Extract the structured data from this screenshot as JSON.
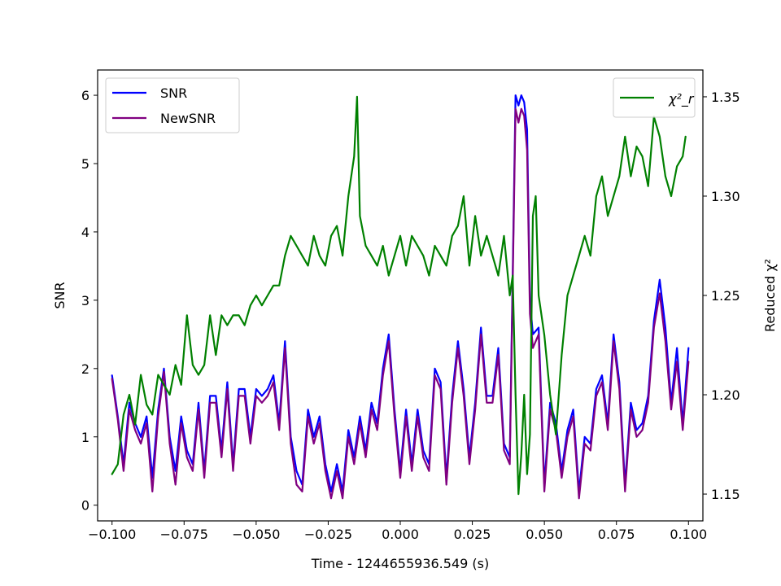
{
  "chart_data": {
    "type": "line",
    "xlabel": "Time - 1244655936.549 (s)",
    "ylabel_left": "SNR",
    "ylabel_right": "Reduced χ²",
    "xlim": [
      -0.105,
      0.105
    ],
    "ylim_left": [
      -0.23,
      6.37
    ],
    "ylim_right": [
      1.1365,
      1.3635
    ],
    "x_ticks": [
      -0.1,
      -0.075,
      -0.05,
      -0.025,
      0.0,
      0.025,
      0.05,
      0.075,
      0.1
    ],
    "x_tick_labels": [
      "−0.100",
      "−0.075",
      "−0.050",
      "−0.025",
      "0.000",
      "0.025",
      "0.050",
      "0.075",
      "0.100"
    ],
    "y_left_ticks": [
      0,
      1,
      2,
      3,
      4,
      5,
      6
    ],
    "y_left_tick_labels": [
      "0",
      "1",
      "2",
      "3",
      "4",
      "5",
      "6"
    ],
    "y_right_ticks": [
      1.15,
      1.2,
      1.25,
      1.3,
      1.35
    ],
    "y_right_tick_labels": [
      "1.15",
      "1.20",
      "1.25",
      "1.30",
      "1.35"
    ],
    "grid": false,
    "legend_left": {
      "placement": "upper-left",
      "entries": [
        "SNR",
        "NewSNR"
      ]
    },
    "legend_right": {
      "placement": "upper-right",
      "entries": [
        "χ²_r"
      ]
    },
    "series": [
      {
        "name": "SNR",
        "axis": "left",
        "color": "#0000ff",
        "x": [
          -0.1,
          -0.098,
          -0.096,
          -0.094,
          -0.092,
          -0.09,
          -0.088,
          -0.086,
          -0.084,
          -0.082,
          -0.08,
          -0.078,
          -0.076,
          -0.074,
          -0.072,
          -0.07,
          -0.068,
          -0.066,
          -0.064,
          -0.062,
          -0.06,
          -0.058,
          -0.056,
          -0.054,
          -0.052,
          -0.05,
          -0.048,
          -0.046,
          -0.044,
          -0.042,
          -0.04,
          -0.038,
          -0.036,
          -0.034,
          -0.032,
          -0.03,
          -0.028,
          -0.026,
          -0.024,
          -0.022,
          -0.02,
          -0.018,
          -0.016,
          -0.014,
          -0.012,
          -0.01,
          -0.008,
          -0.006,
          -0.004,
          -0.002,
          0.0,
          0.002,
          0.004,
          0.006,
          0.008,
          0.01,
          0.012,
          0.014,
          0.016,
          0.018,
          0.02,
          0.022,
          0.024,
          0.026,
          0.028,
          0.03,
          0.032,
          0.034,
          0.036,
          0.038,
          0.04,
          0.041,
          0.042,
          0.043,
          0.044,
          0.045,
          0.046,
          0.048,
          0.05,
          0.052,
          0.054,
          0.056,
          0.058,
          0.06,
          0.062,
          0.064,
          0.066,
          0.068,
          0.07,
          0.072,
          0.074,
          0.076,
          0.078,
          0.08,
          0.082,
          0.084,
          0.086,
          0.088,
          0.09,
          0.092,
          0.094,
          0.096,
          0.098,
          0.1
        ],
        "values": [
          1.9,
          1.3,
          0.6,
          1.5,
          1.2,
          1.0,
          1.3,
          0.4,
          1.4,
          2.0,
          1.0,
          0.5,
          1.3,
          0.8,
          0.6,
          1.5,
          0.5,
          1.6,
          1.6,
          0.8,
          1.8,
          0.6,
          1.7,
          1.7,
          1.0,
          1.7,
          1.6,
          1.7,
          1.9,
          1.2,
          2.4,
          1.0,
          0.5,
          0.3,
          1.4,
          1.0,
          1.3,
          0.6,
          0.2,
          0.6,
          0.2,
          1.1,
          0.7,
          1.3,
          0.8,
          1.5,
          1.2,
          2.0,
          2.5,
          1.4,
          0.5,
          1.4,
          0.6,
          1.4,
          0.8,
          0.6,
          2.0,
          1.8,
          0.4,
          1.6,
          2.4,
          1.7,
          0.7,
          1.5,
          2.6,
          1.6,
          1.6,
          2.3,
          0.9,
          0.7,
          6.0,
          5.85,
          6.0,
          5.9,
          5.5,
          3.0,
          2.5,
          2.6,
          0.3,
          1.5,
          1.2,
          0.5,
          1.1,
          1.4,
          0.2,
          1.0,
          0.9,
          1.7,
          1.9,
          1.2,
          2.5,
          1.8,
          0.3,
          1.5,
          1.1,
          1.2,
          1.6,
          2.7,
          3.3,
          2.6,
          1.5,
          2.3,
          1.2,
          2.3
        ]
      },
      {
        "name": "NewSNR",
        "axis": "left",
        "color": "#800080",
        "x": [
          -0.1,
          -0.098,
          -0.096,
          -0.094,
          -0.092,
          -0.09,
          -0.088,
          -0.086,
          -0.084,
          -0.082,
          -0.08,
          -0.078,
          -0.076,
          -0.074,
          -0.072,
          -0.07,
          -0.068,
          -0.066,
          -0.064,
          -0.062,
          -0.06,
          -0.058,
          -0.056,
          -0.054,
          -0.052,
          -0.05,
          -0.048,
          -0.046,
          -0.044,
          -0.042,
          -0.04,
          -0.038,
          -0.036,
          -0.034,
          -0.032,
          -0.03,
          -0.028,
          -0.026,
          -0.024,
          -0.022,
          -0.02,
          -0.018,
          -0.016,
          -0.014,
          -0.012,
          -0.01,
          -0.008,
          -0.006,
          -0.004,
          -0.002,
          0.0,
          0.002,
          0.004,
          0.006,
          0.008,
          0.01,
          0.012,
          0.014,
          0.016,
          0.018,
          0.02,
          0.022,
          0.024,
          0.026,
          0.028,
          0.03,
          0.032,
          0.034,
          0.036,
          0.038,
          0.04,
          0.041,
          0.042,
          0.043,
          0.044,
          0.045,
          0.046,
          0.048,
          0.05,
          0.052,
          0.054,
          0.056,
          0.058,
          0.06,
          0.062,
          0.064,
          0.066,
          0.068,
          0.07,
          0.072,
          0.074,
          0.076,
          0.078,
          0.08,
          0.082,
          0.084,
          0.086,
          0.088,
          0.09,
          0.092,
          0.094,
          0.096,
          0.098,
          0.1
        ],
        "values": [
          1.85,
          1.25,
          0.5,
          1.4,
          1.1,
          0.9,
          1.2,
          0.2,
          1.3,
          1.95,
          0.9,
          0.3,
          1.2,
          0.7,
          0.5,
          1.4,
          0.4,
          1.5,
          1.5,
          0.7,
          1.7,
          0.5,
          1.6,
          1.6,
          0.9,
          1.6,
          1.5,
          1.6,
          1.8,
          1.1,
          2.3,
          0.9,
          0.3,
          0.2,
          1.3,
          0.9,
          1.2,
          0.5,
          0.1,
          0.5,
          0.1,
          1.0,
          0.6,
          1.2,
          0.7,
          1.4,
          1.1,
          1.9,
          2.4,
          1.3,
          0.4,
          1.3,
          0.5,
          1.3,
          0.7,
          0.5,
          1.9,
          1.7,
          0.3,
          1.5,
          2.3,
          1.6,
          0.6,
          1.4,
          2.5,
          1.5,
          1.5,
          2.2,
          0.8,
          0.6,
          5.8,
          5.6,
          5.8,
          5.7,
          5.2,
          2.8,
          2.3,
          2.5,
          0.2,
          1.4,
          1.1,
          0.4,
          1.0,
          1.3,
          0.1,
          0.9,
          0.8,
          1.6,
          1.8,
          1.1,
          2.4,
          1.7,
          0.2,
          1.4,
          1.0,
          1.1,
          1.5,
          2.6,
          3.1,
          2.4,
          1.4,
          2.1,
          1.1,
          2.1
        ]
      },
      {
        "name": "χ²_r",
        "axis": "right",
        "color": "#008000",
        "x": [
          -0.1,
          -0.098,
          -0.096,
          -0.094,
          -0.092,
          -0.09,
          -0.088,
          -0.086,
          -0.084,
          -0.082,
          -0.08,
          -0.078,
          -0.076,
          -0.074,
          -0.072,
          -0.07,
          -0.068,
          -0.066,
          -0.064,
          -0.062,
          -0.06,
          -0.058,
          -0.056,
          -0.054,
          -0.052,
          -0.05,
          -0.048,
          -0.046,
          -0.044,
          -0.042,
          -0.04,
          -0.038,
          -0.036,
          -0.034,
          -0.032,
          -0.03,
          -0.028,
          -0.026,
          -0.024,
          -0.022,
          -0.02,
          -0.018,
          -0.016,
          -0.015,
          -0.014,
          -0.012,
          -0.01,
          -0.008,
          -0.006,
          -0.004,
          -0.002,
          0.0,
          0.002,
          0.004,
          0.006,
          0.008,
          0.01,
          0.012,
          0.014,
          0.016,
          0.018,
          0.02,
          0.022,
          0.024,
          0.026,
          0.028,
          0.03,
          0.032,
          0.034,
          0.036,
          0.038,
          0.039,
          0.04,
          0.041,
          0.042,
          0.043,
          0.044,
          0.045,
          0.046,
          0.047,
          0.048,
          0.05,
          0.052,
          0.054,
          0.056,
          0.058,
          0.06,
          0.062,
          0.064,
          0.066,
          0.068,
          0.07,
          0.072,
          0.074,
          0.076,
          0.078,
          0.08,
          0.082,
          0.084,
          0.086,
          0.088,
          0.09,
          0.092,
          0.094,
          0.096,
          0.098,
          0.099
        ],
        "values": [
          1.16,
          1.165,
          1.19,
          1.2,
          1.185,
          1.21,
          1.195,
          1.19,
          1.21,
          1.205,
          1.2,
          1.215,
          1.205,
          1.24,
          1.215,
          1.21,
          1.215,
          1.24,
          1.22,
          1.24,
          1.235,
          1.24,
          1.24,
          1.235,
          1.245,
          1.25,
          1.245,
          1.25,
          1.255,
          1.255,
          1.27,
          1.28,
          1.275,
          1.27,
          1.265,
          1.28,
          1.27,
          1.265,
          1.28,
          1.285,
          1.27,
          1.3,
          1.32,
          1.35,
          1.29,
          1.275,
          1.27,
          1.265,
          1.275,
          1.26,
          1.27,
          1.28,
          1.265,
          1.28,
          1.275,
          1.27,
          1.26,
          1.275,
          1.27,
          1.265,
          1.28,
          1.285,
          1.3,
          1.265,
          1.29,
          1.27,
          1.28,
          1.27,
          1.26,
          1.28,
          1.25,
          1.26,
          1.2,
          1.15,
          1.17,
          1.2,
          1.16,
          1.18,
          1.29,
          1.3,
          1.25,
          1.23,
          1.2,
          1.18,
          1.22,
          1.25,
          1.26,
          1.27,
          1.28,
          1.27,
          1.3,
          1.31,
          1.29,
          1.3,
          1.31,
          1.33,
          1.31,
          1.325,
          1.32,
          1.305,
          1.34,
          1.33,
          1.31,
          1.3,
          1.315,
          1.32,
          1.33
        ]
      }
    ]
  }
}
